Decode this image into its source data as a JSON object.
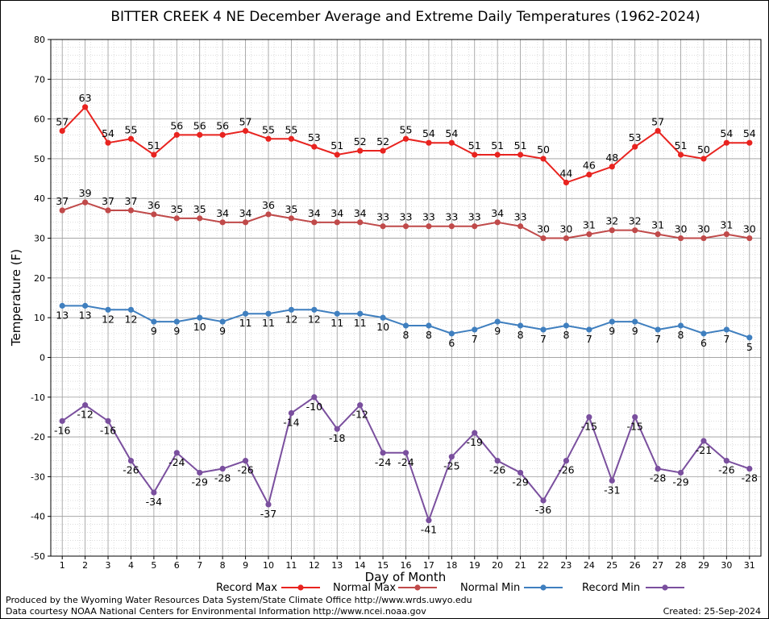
{
  "chart_data": {
    "type": "line",
    "title": "BITTER CREEK 4 NE December Average and Extreme Daily Temperatures (1962-2024)",
    "xlabel": "Day of Month",
    "ylabel": "Temperature (F)",
    "ylim": [
      -50,
      80
    ],
    "yticks": [
      80,
      70,
      60,
      50,
      40,
      30,
      20,
      10,
      0,
      -10,
      -20,
      -30,
      -40,
      -50
    ],
    "xlim": [
      0.5,
      31.5
    ],
    "x": [
      1,
      2,
      3,
      4,
      5,
      6,
      7,
      8,
      9,
      10,
      11,
      12,
      13,
      14,
      15,
      16,
      17,
      18,
      19,
      20,
      21,
      22,
      23,
      24,
      25,
      26,
      27,
      28,
      29,
      30,
      31
    ],
    "grid": true,
    "legend_placement": "bottom",
    "series": [
      {
        "name": "Record Max",
        "color": "#e8231f",
        "label_pos": "above",
        "values": [
          57,
          63,
          54,
          55,
          51,
          56,
          56,
          56,
          57,
          55,
          55,
          53,
          51,
          52,
          52,
          55,
          54,
          54,
          51,
          51,
          51,
          50,
          44,
          46,
          48,
          53,
          57,
          51,
          50,
          54,
          54
        ]
      },
      {
        "name": "Normal Max",
        "color": "#c04a4a",
        "label_pos": "above",
        "values": [
          37,
          39,
          37,
          37,
          36,
          35,
          35,
          34,
          34,
          36,
          35,
          34,
          34,
          34,
          33,
          33,
          33,
          33,
          33,
          34,
          33,
          30,
          30,
          31,
          32,
          32,
          31,
          30,
          30,
          31,
          30
        ]
      },
      {
        "name": "Normal Min",
        "color": "#3f7fbf",
        "label_pos": "below",
        "values": [
          13,
          13,
          12,
          12,
          9,
          9,
          10,
          9,
          11,
          11,
          12,
          12,
          11,
          11,
          10,
          8,
          8,
          6,
          7,
          9,
          8,
          7,
          8,
          7,
          9,
          9,
          7,
          8,
          6,
          7,
          5
        ]
      },
      {
        "name": "Record Min",
        "color": "#7a4f9e",
        "label_pos": "below",
        "values": [
          -16,
          -12,
          -16,
          -26,
          -34,
          -24,
          -29,
          -28,
          -26,
          -37,
          -14,
          -10,
          -18,
          -12,
          -24,
          -24,
          -41,
          -25,
          -19,
          -26,
          -29,
          -36,
          -26,
          -15,
          -31,
          -15,
          -28,
          -29,
          -21,
          -26,
          -28
        ]
      }
    ]
  },
  "footer": {
    "produced_by": "Produced by the Wyoming Water Resources Data System/State Climate Office http://www.wrds.uwyo.edu",
    "data_courtesy": "Data courtesy NOAA National Centers for Environmental Information http://www.ncei.noaa.gov",
    "created": "Created:  25-Sep-2024"
  }
}
